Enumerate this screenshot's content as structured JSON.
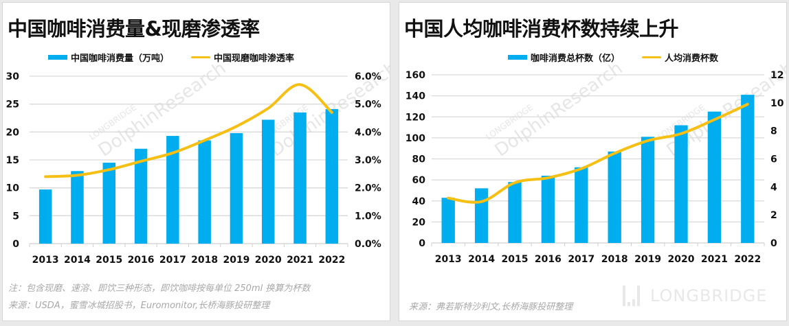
{
  "colors": {
    "bar": "#00aeef",
    "line": "#f5bf13",
    "grid": "#d9d9d9",
    "text": "#111111",
    "note": "#a8a8a8"
  },
  "watermark": {
    "line1": "LONGBRIDGE",
    "line2": "DolphinResearch",
    "brand": "LONGBRIDGE"
  },
  "chart_data": [
    {
      "type": "bar+line",
      "title": "中国咖啡消费量&现磨渗透率",
      "categories": [
        "2013",
        "2014",
        "2015",
        "2016",
        "2017",
        "2018",
        "2019",
        "2020",
        "2021",
        "2022"
      ],
      "series": [
        {
          "name": "中国咖啡消费量（万吨）",
          "type": "bar",
          "axis": "left",
          "values": [
            9.7,
            13.0,
            14.5,
            17.0,
            19.3,
            18.5,
            19.8,
            22.2,
            23.5,
            24.1
          ]
        },
        {
          "name": "中国现磨咖啡渗透率",
          "type": "line",
          "axis": "right",
          "values": [
            2.4,
            2.45,
            2.65,
            2.95,
            3.25,
            3.7,
            4.2,
            4.85,
            5.7,
            4.7
          ]
        }
      ],
      "ylim_left": [
        0,
        30
      ],
      "yticks_left": [
        "0",
        "5",
        "10",
        "15",
        "20",
        "25",
        "30"
      ],
      "ylim_right": [
        0,
        6
      ],
      "yticks_right": [
        "0.0%",
        "1.0%",
        "2.0%",
        "3.0%",
        "4.0%",
        "5.0%",
        "6.0%"
      ],
      "grid": true,
      "legend": "top-center",
      "notes": [
        "注：包含现磨、速溶、即饮三种形态，即饮咖啡按每单位 250ml 换算为杯数",
        "来源：USDA，蜜雪冰城招股书，Euromonitor,长桥海豚投研整理"
      ]
    },
    {
      "type": "bar+line",
      "title": "中国人均咖啡消费杯数持续上升",
      "categories": [
        "2013",
        "2014",
        "2015",
        "2016",
        "2017",
        "2018",
        "2019",
        "2020",
        "2021",
        "2022"
      ],
      "series": [
        {
          "name": "咖啡消费总杯数（亿）",
          "type": "bar",
          "axis": "left",
          "values": [
            43,
            52,
            58,
            64,
            72,
            87,
            101,
            112,
            125,
            141
          ]
        },
        {
          "name": "人均消费杯数",
          "type": "line",
          "axis": "right",
          "values": [
            3.2,
            2.95,
            4.3,
            4.65,
            5.3,
            6.4,
            7.3,
            7.8,
            8.8,
            9.9
          ]
        }
      ],
      "ylim_left": [
        0,
        160
      ],
      "yticks_left": [
        "0",
        "20",
        "40",
        "60",
        "80",
        "100",
        "120",
        "140",
        "160"
      ],
      "ylim_right": [
        0,
        12
      ],
      "yticks_right": [
        "0",
        "2",
        "4",
        "6",
        "8",
        "10",
        "12"
      ],
      "grid": true,
      "legend": "top-right",
      "notes": [
        "来源：弗若斯特沙利文,长桥海豚投研整理"
      ]
    }
  ]
}
